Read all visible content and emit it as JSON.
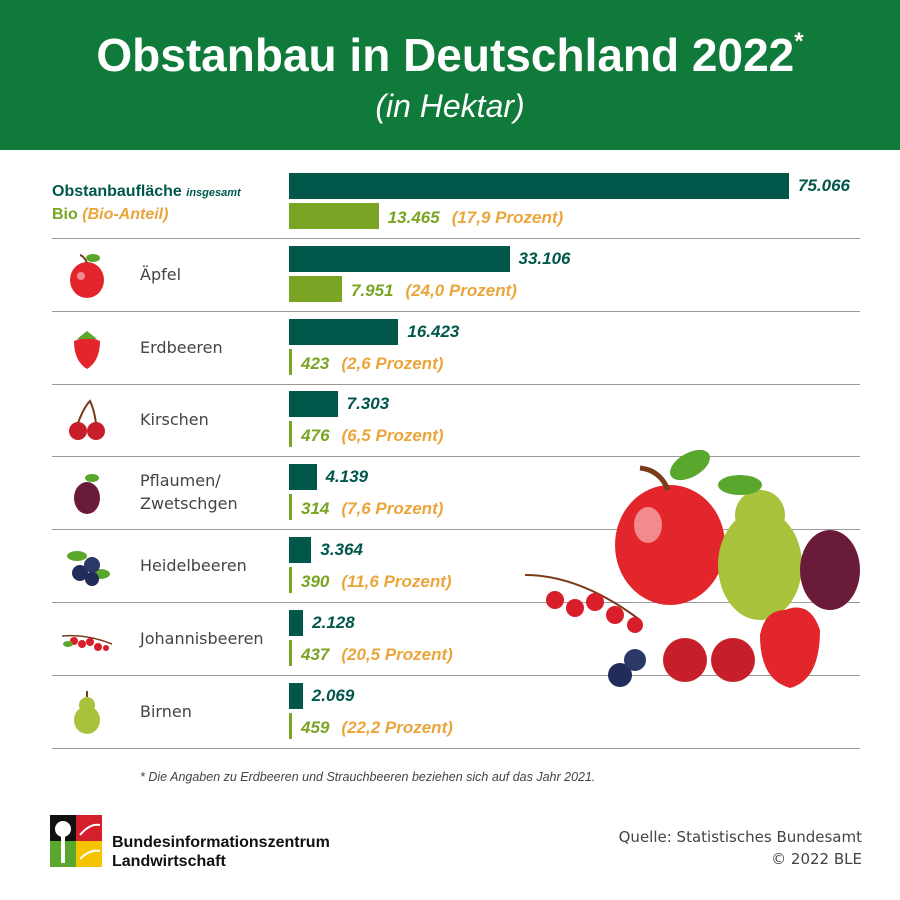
{
  "header": {
    "title": "Obstanbau in Deutschland 2022",
    "title_mark": "*",
    "subtitle": "(in Hektar)"
  },
  "legend": {
    "total": "Obstanbaufläche",
    "total_suffix": "insgesamt",
    "bio": "Bio",
    "bio_suffix": "(Bio-Anteil)"
  },
  "colors": {
    "header": "#0f7a3a",
    "total_bar": "#00574a",
    "bio_bar": "#7aa423",
    "bio_text": "#7aa423",
    "share_text": "#eaa53b"
  },
  "chart_data": {
    "type": "bar",
    "orientation": "horizontal",
    "unit": "Hektar",
    "categories": [
      "Obstanbaufläche insgesamt",
      "Äpfel",
      "Erdbeeren",
      "Kirschen",
      "Pflaumen/ Zwetschgen",
      "Heidelbeeren",
      "Johannisbeeren",
      "Birnen"
    ],
    "series": [
      {
        "name": "Obstanbaufläche insgesamt",
        "values": [
          75066,
          33106,
          16423,
          7303,
          4139,
          3364,
          2128,
          2069
        ],
        "labels": [
          "75.066",
          "33.106",
          "16.423",
          "7.303",
          "4.139",
          "3.364",
          "2.128",
          "2.069"
        ]
      },
      {
        "name": "Bio",
        "values": [
          13465,
          7951,
          423,
          476,
          314,
          390,
          437,
          459
        ],
        "labels": [
          "13.465",
          "7.951",
          "423",
          "476",
          "314",
          "390",
          "437",
          "459"
        ],
        "share_labels": [
          "(17,9 Prozent)",
          "(24,0 Prozent)",
          "(2,6 Prozent)",
          "(6,5 Prozent)",
          "(7,6 Prozent)",
          "(11,6 Prozent)",
          "(20,5 Prozent)",
          "(22,2 Prozent)"
        ]
      }
    ],
    "icons": [
      "",
      "apple-icon",
      "strawberry-icon",
      "cherry-icon",
      "plum-icon",
      "blueberry-icon",
      "currant-icon",
      "pear-icon"
    ]
  },
  "footnote": "* Die Angaben zu Erdbeeren und Strauchbeeren beziehen sich auf das Jahr 2021.",
  "footer": {
    "org_line1": "Bundesinformationszentrum",
    "org_line2": "Landwirtschaft",
    "source": "Quelle: Statistisches Bundesamt",
    "copyright": "© 2022 BLE"
  }
}
